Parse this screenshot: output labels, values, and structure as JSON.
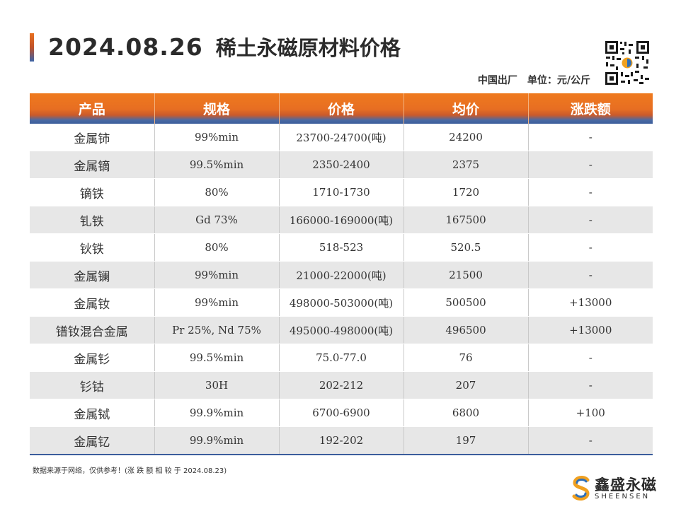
{
  "header": {
    "date": "2024.08.26",
    "title": "稀土永磁原材料价格",
    "origin": "中国出厂",
    "unit": "单位：元/公斤"
  },
  "table": {
    "columns": [
      "产品",
      "规格",
      "价格",
      "均价",
      "涨跌额"
    ],
    "rows": [
      {
        "product": "金属铈",
        "spec": "99%min",
        "price": "23700-24700(吨)",
        "avg": "24200",
        "change": "-",
        "up": false
      },
      {
        "product": "金属镝",
        "spec": "99.5%min",
        "price": "2350-2400",
        "avg": "2375",
        "change": "-",
        "up": false
      },
      {
        "product": "镝铁",
        "spec": "80%",
        "price": "1710-1730",
        "avg": "1720",
        "change": "-",
        "up": false
      },
      {
        "product": "钆铁",
        "spec": "Gd 73%",
        "price": "166000-169000(吨)",
        "avg": "167500",
        "change": "-",
        "up": false
      },
      {
        "product": "钬铁",
        "spec": "80%",
        "price": "518-523",
        "avg": "520.5",
        "change": "-",
        "up": false
      },
      {
        "product": "金属镧",
        "spec": "99%min",
        "price": "21000-22000(吨)",
        "avg": "21500",
        "change": "-",
        "up": false
      },
      {
        "product": "金属钕",
        "spec": "99%min",
        "price": "498000-503000(吨)",
        "avg": "500500",
        "change": "+13000",
        "up": true
      },
      {
        "product": "镨钕混合金属",
        "spec": "Pr 25%, Nd 75%",
        "price": "495000-498000(吨)",
        "avg": "496500",
        "change": "+13000",
        "up": true
      },
      {
        "product": "金属钐",
        "spec": "99.5%min",
        "price": "75.0-77.0",
        "avg": "76",
        "change": "-",
        "up": false
      },
      {
        "product": "钐钴",
        "spec": "30H",
        "price": "202-212",
        "avg": "207",
        "change": "-",
        "up": false
      },
      {
        "product": "金属铽",
        "spec": "99.9%min",
        "price": "6700-6900",
        "avg": "6800",
        "change": "+100",
        "up": true
      },
      {
        "product": "金属钇",
        "spec": "99.9%min",
        "price": "192-202",
        "avg": "197",
        "change": "-",
        "up": false
      }
    ]
  },
  "footnote": "数据来源于网络，仅供参考！(涨 跌 额 相 较 于 2024.08.23)",
  "logo": {
    "cn": "鑫盛永磁",
    "en": "SHEENSEN"
  },
  "colors": {
    "accent_orange": "#ef7a1e",
    "accent_blue": "#3b5d9c",
    "up_red": "#d8141a",
    "row_alt": "#e7e7e7"
  },
  "icons": [
    "qr-code-icon",
    "sheensen-logo-icon"
  ]
}
